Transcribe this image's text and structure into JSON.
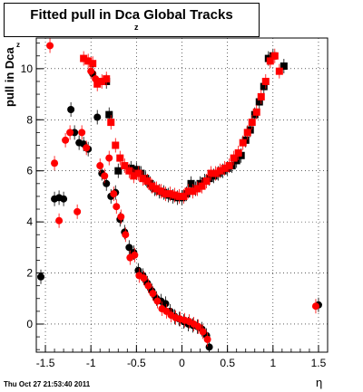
{
  "title": "Fitted pull in Dca Global Tracks",
  "title_subscript": "z",
  "timestamp": "Thu Oct 27 21:53:40 2011",
  "chart_data": {
    "type": "scatter",
    "title": "Fitted pull in Dca Global Tracks",
    "xlabel": "η",
    "ylabel": "pull in Dca",
    "ylabel_subscript": "z",
    "xlim": [
      -1.6,
      1.6
    ],
    "ylim": [
      -1.1,
      11.2
    ],
    "xticks": [
      "-1.5",
      "-1",
      "-0.5",
      "0",
      "0.5",
      "1",
      "1.5"
    ],
    "yticks": [
      "0",
      "2",
      "4",
      "6",
      "8",
      "10"
    ],
    "grid": true,
    "colors": {
      "black": "#000000",
      "red": "#ff0000"
    },
    "series": [
      {
        "color": "#000000",
        "marker": "square",
        "points": [
          [
            -0.56,
            6.1
          ],
          [
            -0.5,
            6.05
          ],
          [
            -0.45,
            5.9
          ],
          [
            -0.4,
            5.7
          ],
          [
            -0.35,
            5.5
          ],
          [
            -0.3,
            5.3
          ],
          [
            -0.25,
            5.2
          ],
          [
            -0.2,
            5.15
          ],
          [
            -0.15,
            5.05
          ],
          [
            -0.1,
            5.0
          ],
          [
            -0.05,
            4.95
          ],
          [
            0.0,
            4.95
          ],
          [
            0.05,
            5.1
          ],
          [
            0.1,
            5.5
          ],
          [
            0.15,
            5.3
          ],
          [
            0.2,
            5.5
          ],
          [
            0.25,
            5.6
          ],
          [
            0.3,
            5.7
          ],
          [
            0.35,
            5.8
          ],
          [
            0.4,
            5.9
          ],
          [
            0.45,
            6.0
          ],
          [
            0.5,
            6.1
          ],
          [
            0.55,
            6.2
          ],
          [
            0.6,
            6.4
          ],
          [
            0.65,
            6.6
          ],
          [
            0.7,
            7.2
          ],
          [
            0.75,
            7.6
          ],
          [
            0.8,
            8.2
          ],
          [
            0.85,
            8.7
          ],
          [
            0.9,
            9.3
          ],
          [
            0.95,
            10.4
          ],
          [
            1.0,
            10.5
          ],
          [
            1.12,
            10.1
          ],
          [
            -0.83,
            9.5
          ],
          [
            -0.8,
            8.2
          ],
          [
            -0.7,
            6.0
          ]
        ]
      },
      {
        "color": "#ff0000",
        "marker": "square",
        "points": [
          [
            -1.08,
            10.4
          ],
          [
            -1.03,
            10.3
          ],
          [
            -0.98,
            10.2
          ],
          [
            -0.93,
            9.4
          ],
          [
            -0.88,
            9.5
          ],
          [
            -0.83,
            9.6
          ],
          [
            -0.78,
            7.9
          ],
          [
            -0.73,
            7.0
          ],
          [
            -0.68,
            6.5
          ],
          [
            -0.63,
            6.2
          ],
          [
            -0.58,
            6.0
          ],
          [
            -0.53,
            5.8
          ],
          [
            -0.48,
            5.9
          ],
          [
            -0.43,
            5.7
          ],
          [
            -0.38,
            5.6
          ],
          [
            -0.33,
            5.4
          ],
          [
            -0.28,
            5.3
          ],
          [
            -0.23,
            5.2
          ],
          [
            -0.18,
            5.1
          ],
          [
            -0.13,
            5.1
          ],
          [
            -0.08,
            5.05
          ],
          [
            -0.03,
            5.0
          ],
          [
            0.02,
            5.0
          ],
          [
            0.07,
            5.2
          ],
          [
            0.12,
            5.2
          ],
          [
            0.17,
            5.3
          ],
          [
            0.22,
            5.4
          ],
          [
            0.27,
            5.6
          ],
          [
            0.32,
            5.9
          ],
          [
            0.37,
            5.9
          ],
          [
            0.42,
            6.0
          ],
          [
            0.47,
            6.1
          ],
          [
            0.52,
            6.2
          ],
          [
            0.57,
            6.5
          ],
          [
            0.62,
            6.7
          ],
          [
            0.67,
            7.1
          ],
          [
            0.72,
            7.5
          ],
          [
            0.77,
            7.9
          ],
          [
            0.82,
            8.3
          ],
          [
            0.87,
            8.9
          ],
          [
            0.92,
            9.5
          ],
          [
            0.97,
            10.3
          ],
          [
            1.02,
            10.5
          ],
          [
            1.07,
            9.9
          ]
        ]
      },
      {
        "color": "#000000",
        "marker": "circle",
        "points": [
          [
            -1.55,
            1.85
          ],
          [
            -1.4,
            4.9
          ],
          [
            -1.35,
            4.95
          ],
          [
            -1.3,
            4.9
          ],
          [
            -1.22,
            8.4
          ],
          [
            -1.18,
            7.5
          ],
          [
            -1.13,
            7.1
          ],
          [
            -1.08,
            7.05
          ],
          [
            -1.03,
            6.85
          ],
          [
            -0.98,
            9.8
          ],
          [
            -0.93,
            8.1
          ],
          [
            -0.88,
            5.9
          ],
          [
            -0.83,
            5.5
          ],
          [
            -0.78,
            5.0
          ],
          [
            -0.73,
            5.15
          ],
          [
            -0.68,
            4.1
          ],
          [
            -0.63,
            3.6
          ],
          [
            -0.58,
            3.0
          ],
          [
            -0.53,
            2.8
          ],
          [
            -0.48,
            2.1
          ],
          [
            -0.43,
            1.9
          ],
          [
            -0.38,
            1.6
          ],
          [
            -0.33,
            1.3
          ],
          [
            -0.28,
            1.0
          ],
          [
            -0.23,
            0.9
          ],
          [
            -0.18,
            0.8
          ],
          [
            -0.13,
            0.5
          ],
          [
            -0.08,
            0.3
          ],
          [
            -0.03,
            0.2
          ],
          [
            0.02,
            0.1
          ],
          [
            0.07,
            0.0
          ],
          [
            0.12,
            -0.05
          ],
          [
            0.17,
            -0.1
          ],
          [
            0.22,
            -0.2
          ],
          [
            0.27,
            -0.45
          ],
          [
            0.3,
            -0.9
          ],
          [
            1.5,
            0.75
          ]
        ]
      },
      {
        "color": "#ff0000",
        "marker": "circle",
        "points": [
          [
            -1.45,
            10.9
          ],
          [
            -1.4,
            6.3
          ],
          [
            -1.35,
            4.05
          ],
          [
            -1.28,
            7.2
          ],
          [
            -1.23,
            7.5
          ],
          [
            -1.15,
            4.4
          ],
          [
            -1.1,
            7.5
          ],
          [
            -1.05,
            6.9
          ],
          [
            -1.0,
            9.9
          ],
          [
            -0.95,
            9.6
          ],
          [
            -0.9,
            6.2
          ],
          [
            -0.85,
            5.8
          ],
          [
            -0.8,
            6.5
          ],
          [
            -0.75,
            5.1
          ],
          [
            -0.72,
            4.6
          ],
          [
            -0.67,
            4.2
          ],
          [
            -0.62,
            3.5
          ],
          [
            -0.57,
            2.6
          ],
          [
            -0.52,
            2.7
          ],
          [
            -0.47,
            1.9
          ],
          [
            -0.42,
            1.8
          ],
          [
            -0.37,
            1.5
          ],
          [
            -0.32,
            1.2
          ],
          [
            -0.27,
            0.9
          ],
          [
            -0.22,
            0.6
          ],
          [
            -0.17,
            0.5
          ],
          [
            -0.12,
            0.35
          ],
          [
            -0.07,
            0.25
          ],
          [
            -0.02,
            0.2
          ],
          [
            0.03,
            0.15
          ],
          [
            0.08,
            0.1
          ],
          [
            0.13,
            0.0
          ],
          [
            0.18,
            -0.1
          ],
          [
            0.23,
            -0.3
          ],
          [
            0.28,
            -0.6
          ],
          [
            1.47,
            0.7
          ]
        ]
      }
    ]
  }
}
